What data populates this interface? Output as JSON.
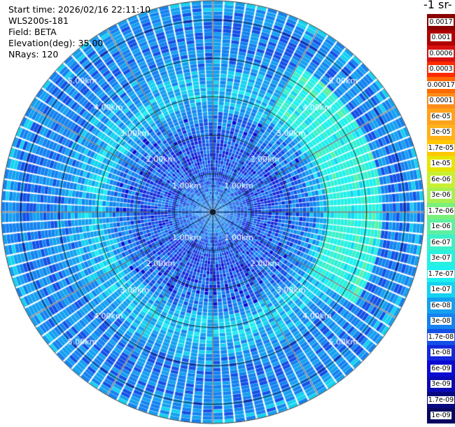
{
  "header": {
    "start_time": "Start time: 2026/02/16 22:11:10",
    "device": "WLS200s-181",
    "field": "Field: BETA",
    "elevation": "Elevation(deg): 35.00",
    "nrays": "NRays: 120"
  },
  "colorbar": {
    "title": "-1 sr-",
    "levels": [
      {
        "label": "0.0017",
        "color": "#8b0000"
      },
      {
        "label": "0.001",
        "color": "#b00000"
      },
      {
        "label": "0.0006",
        "color": "#d81010"
      },
      {
        "label": "0.0003",
        "color": "#ff2a00"
      },
      {
        "label": "0.00017",
        "color": "#ff6a00"
      },
      {
        "label": "0.0001",
        "color": "#ff8c1a"
      },
      {
        "label": "6e-05",
        "color": "#ffa31a"
      },
      {
        "label": "3e-05",
        "color": "#ffb21a"
      },
      {
        "label": "1.7e-05",
        "color": "#ffc800"
      },
      {
        "label": "1e-05",
        "color": "#e6e600"
      },
      {
        "label": "6e-06",
        "color": "#c8f032"
      },
      {
        "label": "3e-06",
        "color": "#a8f050"
      },
      {
        "label": "1.7e-06",
        "color": "#7af07a"
      },
      {
        "label": "1e-06",
        "color": "#5ef0a0"
      },
      {
        "label": "6e-07",
        "color": "#3cf0c8"
      },
      {
        "label": "3e-07",
        "color": "#28f0e0"
      },
      {
        "label": "1.7e-07",
        "color": "#1ef0f0"
      },
      {
        "label": "1e-07",
        "color": "#14d2f0"
      },
      {
        "label": "6e-08",
        "color": "#14a0f0"
      },
      {
        "label": "3e-08",
        "color": "#1482f0"
      },
      {
        "label": "1.7e-08",
        "color": "#1450e6"
      },
      {
        "label": "1e-08",
        "color": "#1428dc"
      },
      {
        "label": "6e-09",
        "color": "#0a0ad2"
      },
      {
        "label": "3e-09",
        "color": "#0a0ab4"
      },
      {
        "label": "1.7e-09",
        "color": "#08087e"
      },
      {
        "label": "1e-09",
        "color": "#060660"
      }
    ]
  },
  "chart_data": {
    "type": "heatmap",
    "projection": "polar-ppi",
    "field": "BETA",
    "elevation_deg": 35.0,
    "n_rays": 120,
    "range_km": [
      0,
      5.5
    ],
    "range_rings_km": [
      1.0,
      2.0,
      3.0,
      4.0,
      5.0
    ],
    "ring_labels": [
      "1.00km",
      "2.00km",
      "3.00km",
      "4.00km",
      "5.00km"
    ],
    "azimuth_lines_deg": [
      0,
      30,
      60,
      90,
      120,
      150,
      180,
      210,
      240,
      270,
      300,
      330
    ],
    "grid": true,
    "range_profile": [
      {
        "range_km": 0.3,
        "level_index": 19
      },
      {
        "range_km": 1.0,
        "level_index": 20
      },
      {
        "range_km": 1.8,
        "level_index": 20
      },
      {
        "range_km": 2.5,
        "level_index": 19
      },
      {
        "range_km": 3.0,
        "level_index": 17
      },
      {
        "range_km": 3.5,
        "level_index": 18
      },
      {
        "range_km": 4.2,
        "level_index": 19
      },
      {
        "range_km": 5.0,
        "level_index": 19
      },
      {
        "range_km": 5.5,
        "level_index": 18
      }
    ],
    "bright_sector": {
      "azimuth_deg": [
        30,
        120
      ],
      "range_km": [
        3.0,
        4.4
      ],
      "level_index": 15
    }
  }
}
